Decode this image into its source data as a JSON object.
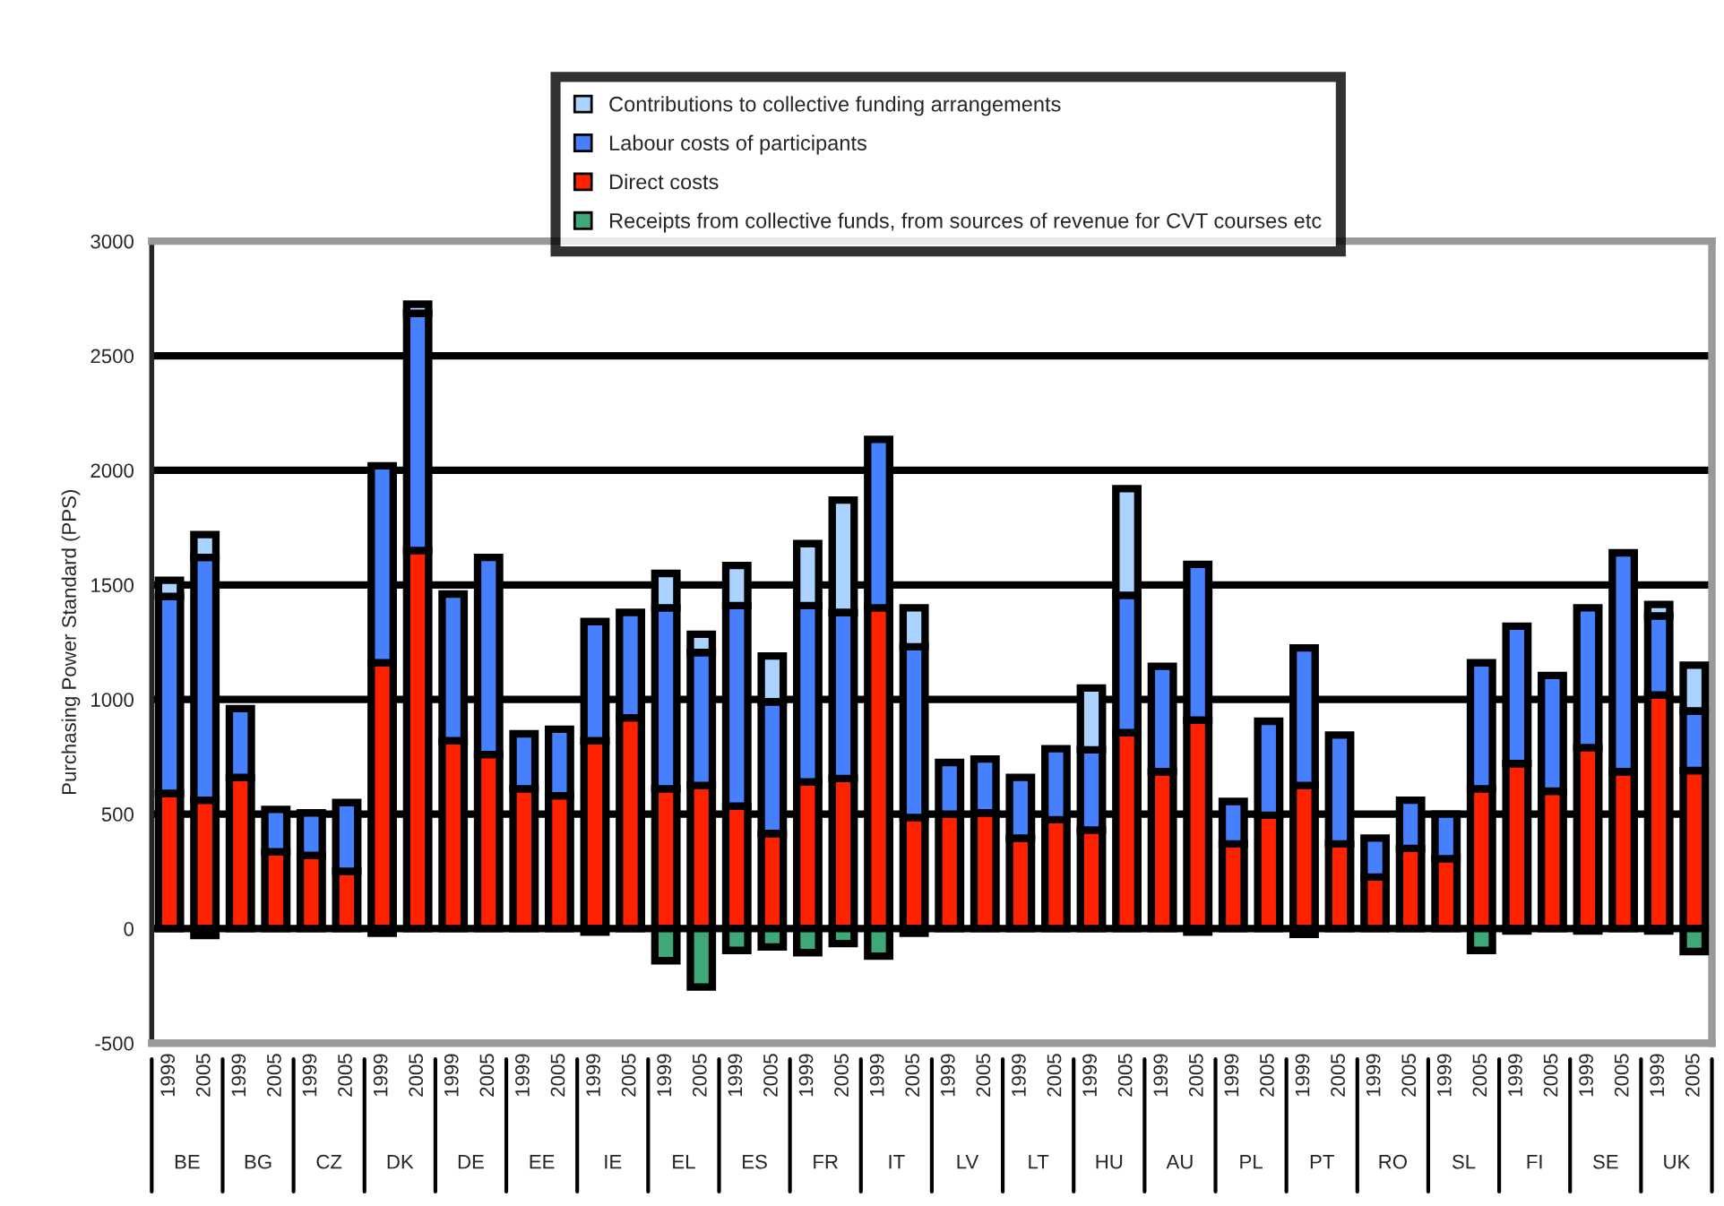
{
  "chart_data": {
    "type": "bar",
    "stacked": true,
    "ylabel": "Purchasing Power Standard (PPS)",
    "categories": [
      "1999",
      "2005",
      "1999",
      "2005",
      "1999",
      "2005",
      "1999",
      "2005",
      "1999",
      "2005",
      "1999",
      "2005",
      "1999",
      "2005",
      "1999",
      "2005",
      "1999",
      "2005",
      "1999",
      "2005",
      "1999",
      "2005",
      "1999",
      "2005",
      "1999",
      "2005",
      "1999",
      "2005",
      "1999",
      "2005",
      "1999",
      "2005",
      "1999",
      "2005",
      "1999",
      "2005",
      "1999",
      "2005",
      "1999",
      "2005",
      "1999",
      "2005",
      "1999",
      "2005"
    ],
    "annotations": [
      "BE",
      "BG",
      "CZ",
      "DK",
      "DE",
      "EE",
      "IE",
      "EL",
      "ES",
      "FR",
      "IT",
      "LV",
      "LT",
      "HU",
      "AU",
      "PL",
      "PT",
      "RO",
      "SL",
      "FI",
      "SE",
      "UK"
    ],
    "series": [
      {
        "name": "Direct costs",
        "color": "#ff2200",
        "values": [
          590,
          560,
          660,
          335,
          320,
          250,
          1160,
          1650,
          820,
          760,
          610,
          580,
          820,
          920,
          610,
          625,
          535,
          415,
          640,
          655,
          1400,
          485,
          500,
          505,
          395,
          475,
          430,
          855,
          685,
          910,
          370,
          495,
          625,
          370,
          225,
          350,
          305,
          610,
          720,
          600,
          790,
          685,
          1020,
          690
        ]
      },
      {
        "name": "Labour costs of participants",
        "color": "#4680ff",
        "values": [
          860,
          1060,
          300,
          185,
          185,
          300,
          860,
          1035,
          640,
          860,
          240,
          290,
          520,
          460,
          790,
          580,
          875,
          575,
          770,
          725,
          735,
          745,
          225,
          235,
          265,
          310,
          350,
          600,
          460,
          680,
          185,
          410,
          600,
          475,
          170,
          210,
          195,
          550,
          600,
          505,
          610,
          955,
          345,
          260
        ]
      },
      {
        "name": "Contributions to collective funding arrangements",
        "color": "#aad4ff",
        "values": [
          70,
          100,
          null,
          null,
          null,
          null,
          null,
          40,
          null,
          null,
          null,
          null,
          null,
          null,
          150,
          80,
          175,
          200,
          270,
          490,
          null,
          170,
          null,
          null,
          null,
          null,
          270,
          465,
          null,
          null,
          null,
          null,
          null,
          null,
          null,
          null,
          null,
          null,
          null,
          null,
          null,
          null,
          50,
          200
        ]
      },
      {
        "name": "Receipts from collective funds, from sources of revenue for CVT courses etc",
        "color": "#3fa878",
        "values": [
          null,
          -30,
          null,
          null,
          null,
          null,
          -20,
          null,
          null,
          null,
          null,
          null,
          -15,
          null,
          -140,
          -255,
          -95,
          -80,
          -105,
          -65,
          -120,
          -20,
          null,
          null,
          null,
          null,
          null,
          null,
          null,
          -15,
          null,
          null,
          -25,
          null,
          null,
          null,
          null,
          -95,
          -10,
          null,
          -10,
          null,
          -10,
          -100
        ]
      }
    ],
    "ylim": [
      -500,
      3000
    ],
    "yticks": [
      -500,
      0,
      500,
      1000,
      1500,
      2000,
      2500,
      3000
    ],
    "grid": "y",
    "legend": "top"
  }
}
